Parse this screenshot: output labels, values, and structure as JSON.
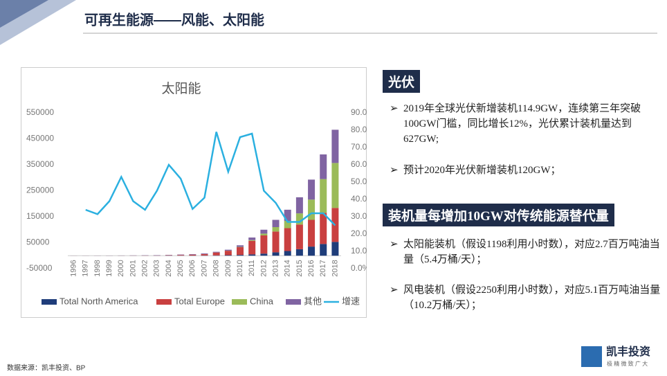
{
  "slide_title": "可再生能源——风能、太阳能",
  "source": "数据来源：凯丰投资、BP",
  "logo": {
    "name": "凯丰投资",
    "tagline": "极 精 微 致 广 大"
  },
  "panel": {
    "heading1": "光伏",
    "bullets1": [
      "2019年全球光伏新增装机114.9GW，连续第三年突破100GW门槛，同比增长12%，光伏累计装机量达到627GW;",
      "预计2020年光伏新增装机120GW；"
    ],
    "heading2": "装机量每增加10GW对传统能源替代量",
    "bullets2": [
      "太阳能装机（假设1198利用小时数），对应2.7百万吨油当量（5.4万桶/天）；",
      "风电装机（假设2250利用小时数），对应5.1百万吨油当量（10.2万桶/天）；"
    ]
  },
  "chart_data": {
    "type": "stacked-bar-line",
    "title": "太阳能",
    "categories": [
      "1996",
      "1997",
      "1998",
      "1999",
      "2000",
      "2001",
      "2002",
      "2003",
      "2004",
      "2005",
      "2006",
      "2007",
      "2008",
      "2009",
      "2010",
      "2011",
      "2012",
      "2013",
      "2014",
      "2015",
      "2016",
      "2017",
      "2018"
    ],
    "series": [
      {
        "name": "Total North America",
        "color": "#1f3d7a",
        "values": [
          100,
          110,
          120,
          130,
          150,
          180,
          230,
          280,
          380,
          480,
          600,
          800,
          1200,
          2000,
          3000,
          5000,
          8000,
          13000,
          18000,
          25000,
          35000,
          45000,
          53000
        ]
      },
      {
        "name": "Total Europe",
        "color": "#c94040",
        "values": [
          100,
          120,
          140,
          170,
          220,
          300,
          400,
          600,
          1300,
          2300,
          3300,
          5000,
          11000,
          17000,
          30000,
          52000,
          70000,
          80000,
          88000,
          95000,
          103000,
          120000,
          131000
        ]
      },
      {
        "name": "China",
        "color": "#9bbb59",
        "values": [
          10,
          12,
          15,
          18,
          20,
          25,
          40,
          50,
          60,
          70,
          80,
          100,
          150,
          300,
          1000,
          3000,
          7000,
          17000,
          28000,
          43000,
          78000,
          130000,
          173000
        ]
      },
      {
        "name": "其他",
        "color": "#8064a2",
        "values": [
          100,
          160,
          220,
          280,
          410,
          600,
          830,
          1070,
          1260,
          1650,
          2000,
          2600,
          2650,
          3700,
          6000,
          10000,
          15000,
          28000,
          43000,
          62000,
          77000,
          95000,
          128000
        ]
      },
      {
        "name": "增速",
        "color": "#2bb0e0",
        "axis": "y2",
        "line": true,
        "values": [
          null,
          34,
          31.5,
          39,
          53,
          39,
          34,
          45,
          60,
          52,
          34.5,
          41,
          79,
          56,
          76,
          78,
          45,
          38,
          27,
          27,
          32,
          32,
          25
        ]
      }
    ],
    "ylim": [
      -50000,
      550000
    ],
    "yticks": [
      -50000,
      50000,
      150000,
      250000,
      350000,
      450000,
      550000
    ],
    "y2lim": [
      0,
      90
    ],
    "y2ticks": [
      {
        "value": 0,
        "label": "0.0%"
      },
      {
        "value": 10,
        "label": "10.0%"
      },
      {
        "value": 20,
        "label": "20.0%"
      },
      {
        "value": 30,
        "label": "30.0%"
      },
      {
        "value": 40,
        "label": "40.0%"
      },
      {
        "value": 50,
        "label": "50.0%"
      },
      {
        "value": 60,
        "label": "60.0%"
      },
      {
        "value": 70,
        "label": "70.0%"
      },
      {
        "value": 80,
        "label": "80.0%"
      },
      {
        "value": 90,
        "label": "90.0%"
      }
    ],
    "legend": "bottom"
  }
}
